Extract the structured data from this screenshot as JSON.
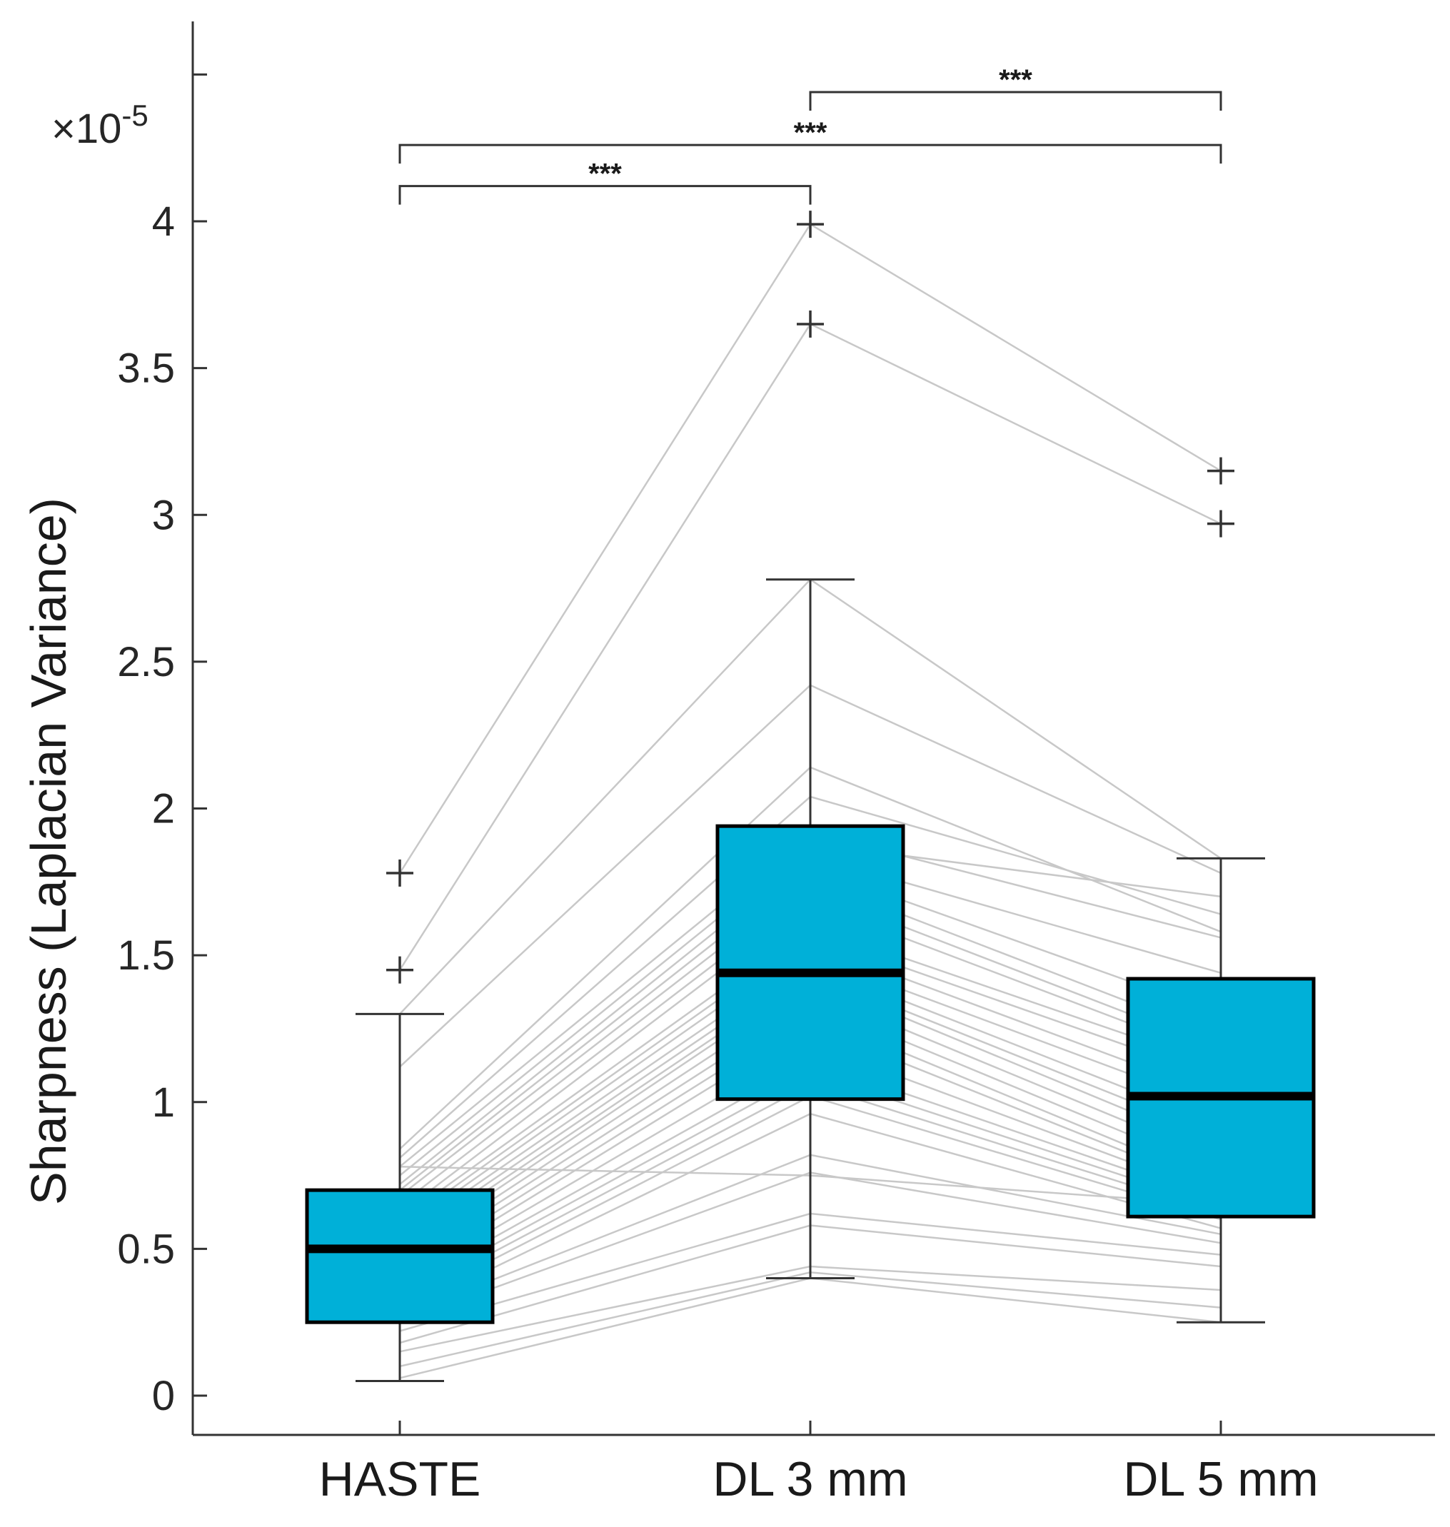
{
  "chart_data": {
    "type": "box",
    "ylabel": "Sharpness (Laplacian Variance)",
    "y_exponent_label": "×10",
    "y_exponent_power": "-5",
    "ylim": [
      -0.15,
      4.75
    ],
    "yticks": [
      0,
      0.5,
      1,
      1.5,
      2,
      2.5,
      3,
      3.5,
      4,
      4.5
    ],
    "ytick_labels": [
      "0",
      "0.5",
      "1",
      "1.5",
      "2",
      "2.5",
      "3",
      "3.5",
      "4",
      ""
    ],
    "categories": [
      "HASTE",
      "DL 3 mm",
      "DL 5 mm"
    ],
    "box_color": "#00b0d8",
    "paired_line_color": "#c8c8c8",
    "boxes": [
      {
        "name": "HASTE",
        "whisker_low": 0.05,
        "q1": 0.25,
        "median": 0.5,
        "q3": 0.7,
        "whisker_high": 1.3,
        "outliers": [
          1.45,
          1.78
        ]
      },
      {
        "name": "DL 3 mm",
        "whisker_low": 0.4,
        "q1": 1.01,
        "median": 1.44,
        "q3": 1.94,
        "whisker_high": 2.78,
        "outliers": [
          3.65,
          3.99
        ]
      },
      {
        "name": "DL 5 mm",
        "whisker_low": 0.25,
        "q1": 0.61,
        "median": 1.02,
        "q3": 1.42,
        "whisker_high": 1.83,
        "outliers": [
          2.97,
          3.15
        ]
      }
    ],
    "paired_series": [
      [
        1.78,
        3.99,
        3.15
      ],
      [
        1.45,
        3.65,
        2.97
      ],
      [
        1.3,
        2.78,
        1.83
      ],
      [
        1.12,
        2.42,
        1.78
      ],
      [
        0.84,
        2.14,
        1.58
      ],
      [
        0.81,
        2.04,
        1.64
      ],
      [
        0.78,
        1.92,
        1.56
      ],
      [
        0.75,
        1.88,
        1.7
      ],
      [
        0.72,
        1.84,
        1.44
      ],
      [
        0.7,
        1.8,
        1.3
      ],
      [
        0.68,
        1.76,
        1.22
      ],
      [
        0.65,
        1.72,
        1.18
      ],
      [
        0.62,
        1.68,
        1.15
      ],
      [
        0.6,
        1.6,
        1.12
      ],
      [
        0.58,
        1.57,
        1.08
      ],
      [
        0.56,
        1.54,
        1.02
      ],
      [
        0.54,
        1.5,
        0.98
      ],
      [
        0.52,
        1.47,
        0.92
      ],
      [
        0.5,
        1.44,
        0.88
      ],
      [
        0.48,
        1.42,
        0.84
      ],
      [
        0.46,
        1.38,
        0.8
      ],
      [
        0.44,
        1.34,
        0.76
      ],
      [
        0.42,
        1.3,
        0.72
      ],
      [
        0.4,
        1.26,
        0.7
      ],
      [
        0.38,
        1.2,
        0.68
      ],
      [
        0.36,
        1.14,
        0.66
      ],
      [
        0.34,
        1.1,
        0.64
      ],
      [
        0.32,
        1.06,
        0.62
      ],
      [
        0.3,
        1.02,
        0.6
      ],
      [
        0.28,
        0.96,
        0.57
      ],
      [
        0.27,
        0.82,
        0.55
      ],
      [
        0.25,
        0.76,
        0.52
      ],
      [
        0.22,
        0.62,
        0.48
      ],
      [
        0.18,
        0.58,
        0.44
      ],
      [
        0.15,
        0.44,
        0.36
      ],
      [
        0.1,
        0.42,
        0.3
      ],
      [
        0.06,
        0.4,
        0.25
      ],
      [
        0.78,
        0.75,
        0.65
      ]
    ],
    "significance": [
      {
        "from": 0,
        "to": 1,
        "label": "***",
        "level": 4.12
      },
      {
        "from": 0,
        "to": 2,
        "label": "***",
        "level": 4.26
      },
      {
        "from": 1,
        "to": 2,
        "label": "***",
        "level": 4.44
      }
    ]
  }
}
